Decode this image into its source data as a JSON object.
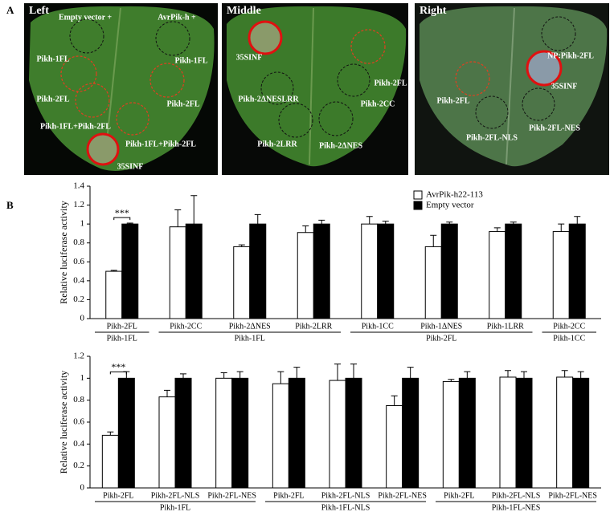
{
  "panel_a": {
    "label": "A",
    "leaves": [
      {
        "title": "Left",
        "labels": [
          "Empty vector +",
          "AvrPik-h +",
          "Pikh-1FL",
          "Pikh-1FL",
          "Pikh-2FL",
          "Pikh-2FL",
          "Pikh-1FL+Pikh-2FL",
          "Pikh-1FL+Pikh-2FL",
          "35SINF"
        ]
      },
      {
        "title": "Middle",
        "labels": [
          "35SINF",
          "Pikh-2FL",
          "Pikh-2ΔNESLRR",
          "Pikh-2CC",
          "Pikh-2LRR",
          "Pikh-2ΔNES"
        ]
      },
      {
        "title": "Right",
        "labels": [
          "NP:Pikh-2FL",
          "35SINF",
          "Pikh-2FL",
          "Pikh-2FL-NLS",
          "Pikh-2FL-NES"
        ]
      }
    ]
  },
  "panel_b": {
    "label": "B"
  },
  "chart_data": [
    {
      "type": "bar",
      "y_label": "Relative luciferase activity",
      "ylim": [
        0,
        1.4
      ],
      "yticks": [
        0,
        0.2,
        0.4,
        0.6,
        0.8,
        1,
        1.2,
        1.4
      ],
      "legend": true,
      "groups": [
        {
          "label": "Pikh-1FL",
          "categories": [
            "Pikh-2FL"
          ]
        },
        {
          "label": "Pikh-1FL",
          "categories": [
            "Pikh-2CC",
            "Pikh-2ΔNES",
            "Pikh-2LRR"
          ]
        },
        {
          "label": "Pikh-2FL",
          "categories": [
            "Pikh-1CC",
            "Pikh-1ΔNES",
            "Pikh-1LRR"
          ]
        },
        {
          "label": "Pikh-1CC",
          "categories": [
            "Pikh-2CC"
          ]
        }
      ],
      "series": [
        {
          "name": "AvrPik-h22-113",
          "color": "#ffffff",
          "values": [
            0.5,
            0.97,
            0.76,
            0.91,
            1.0,
            0.76,
            0.92,
            0.92
          ],
          "errors": [
            0.01,
            0.18,
            0.02,
            0.07,
            0.08,
            0.12,
            0.04,
            0.08
          ]
        },
        {
          "name": "Empty vector",
          "color": "#000000",
          "values": [
            1.0,
            1.0,
            1.0,
            1.0,
            1.0,
            1.0,
            1.0,
            1.0
          ],
          "errors": [
            0.01,
            0.3,
            0.1,
            0.04,
            0.03,
            0.02,
            0.02,
            0.08
          ]
        }
      ],
      "annotations": [
        {
          "text": "***"
        }
      ]
    },
    {
      "type": "bar",
      "y_label": "Relative luciferase activity",
      "ylim": [
        0,
        1.2
      ],
      "yticks": [
        0,
        0.2,
        0.4,
        0.6,
        0.8,
        1,
        1.2
      ],
      "legend": false,
      "groups": [
        {
          "label": "Pikh-1FL",
          "categories": [
            "Pikh-2FL",
            "Pikh-2FL-NLS",
            "Pikh-2FL-NES"
          ]
        },
        {
          "label": "Pikh-1FL-NLS",
          "categories": [
            "Pikh-2FL",
            "Pikh-2FL-NLS",
            "Pikh-2FL-NES"
          ]
        },
        {
          "label": "Pikh-1FL-NES",
          "categories": [
            "Pikh-2FL",
            "Pikh-2FL-NLS",
            "Pikh-2FL-NES"
          ]
        }
      ],
      "series": [
        {
          "name": "AvrPik-h22-113",
          "color": "#ffffff",
          "values": [
            0.48,
            0.83,
            1.0,
            0.95,
            0.98,
            0.75,
            0.97,
            1.01,
            1.01
          ],
          "errors": [
            0.03,
            0.06,
            0.05,
            0.11,
            0.15,
            0.09,
            0.02,
            0.06,
            0.06
          ]
        },
        {
          "name": "Empty vector",
          "color": "#000000",
          "values": [
            1.0,
            1.0,
            1.0,
            1.0,
            1.0,
            1.0,
            1.0,
            1.0,
            1.0
          ],
          "errors": [
            0.06,
            0.04,
            0.06,
            0.1,
            0.13,
            0.1,
            0.06,
            0.06,
            0.06
          ]
        }
      ],
      "annotations": [
        {
          "text": "***"
        }
      ]
    }
  ]
}
